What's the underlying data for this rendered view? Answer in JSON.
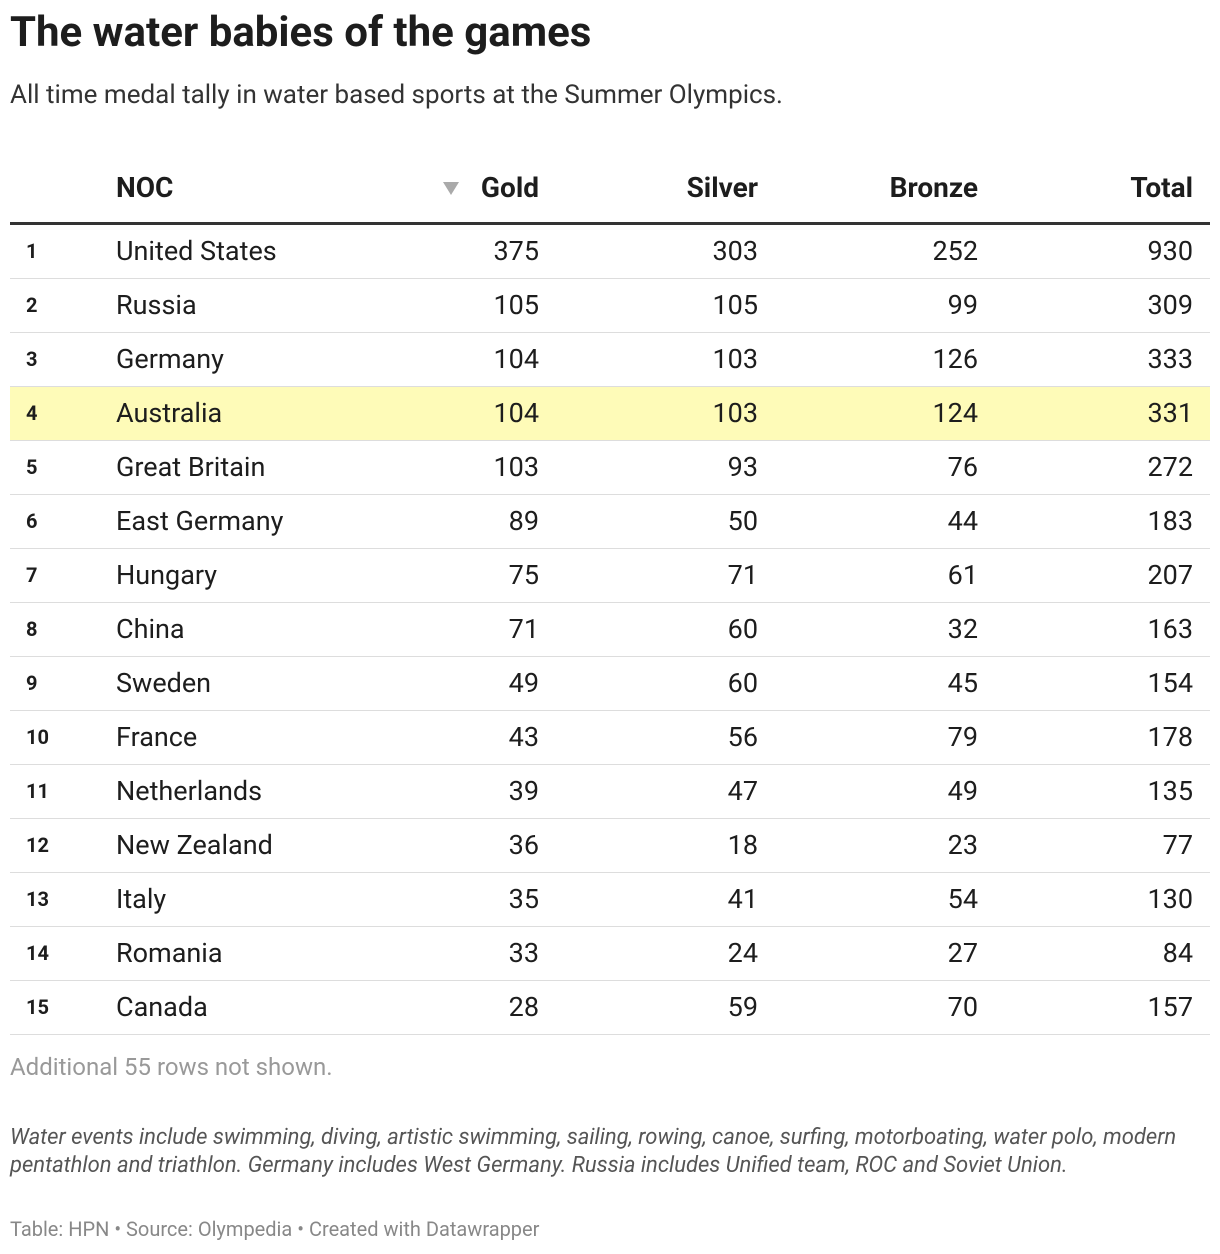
{
  "header": {
    "title": "The water babies of the games",
    "subtitle": "All time medal tally in water based sports at the Summer Olympics."
  },
  "table": {
    "columns": [
      "NOC",
      "Gold",
      "Silver",
      "Bronze",
      "Total"
    ],
    "rows": [
      [
        1,
        "United States",
        375,
        303,
        252,
        930
      ],
      [
        2,
        "Russia",
        105,
        105,
        99,
        309
      ],
      [
        3,
        "Germany",
        104,
        103,
        126,
        333
      ],
      [
        4,
        "Australia",
        104,
        103,
        124,
        331
      ],
      [
        5,
        "Great Britain",
        103,
        93,
        76,
        272
      ],
      [
        6,
        "East Germany",
        89,
        50,
        44,
        183
      ],
      [
        7,
        "Hungary",
        75,
        71,
        61,
        207
      ],
      [
        8,
        "China",
        71,
        60,
        32,
        163
      ],
      [
        9,
        "Sweden",
        49,
        60,
        45,
        154
      ],
      [
        10,
        "France",
        43,
        56,
        79,
        178
      ],
      [
        11,
        "Netherlands",
        39,
        47,
        49,
        135
      ],
      [
        12,
        "New Zealand",
        36,
        18,
        23,
        77
      ],
      [
        13,
        "Italy",
        35,
        41,
        54,
        130
      ],
      [
        14,
        "Romania",
        33,
        24,
        27,
        84
      ],
      [
        15,
        "Canada",
        28,
        59,
        70,
        157
      ]
    ],
    "more_rows": "Additional 55 rows not shown."
  },
  "notes": "Water events include swimming, diving, artistic swimming, sailing, rowing, canoe, surfing, motorboating, water polo, modern pentathlon and triathlon. Germany includes West Germany. Russia includes Unified team, ROC and Soviet Union.",
  "footer": "Table: HPN • Source: Olympedia • Created with Datawrapper"
}
